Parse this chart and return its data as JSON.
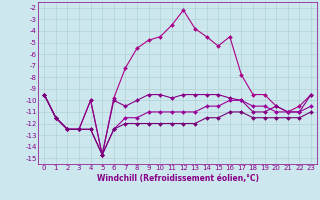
{
  "xlabel": "Windchill (Refroidissement éolien,°C)",
  "background_color": "#cce8ee",
  "grid_color": "#aacccc",
  "line_color": "#880088",
  "xlim": [
    -0.5,
    23.5
  ],
  "ylim": [
    -15.5,
    -1.5
  ],
  "yticks": [
    -15,
    -14,
    -13,
    -12,
    -11,
    -10,
    -9,
    -8,
    -7,
    -6,
    -5,
    -4,
    -3,
    -2
  ],
  "xticks": [
    0,
    1,
    2,
    3,
    4,
    5,
    6,
    7,
    8,
    9,
    10,
    11,
    12,
    13,
    14,
    15,
    16,
    17,
    18,
    19,
    20,
    21,
    22,
    23
  ],
  "series": [
    [
      -9.5,
      -11.5,
      -12.5,
      -12.5,
      -10.0,
      -14.7,
      -9.8,
      -7.2,
      -5.5,
      -4.8,
      -4.5,
      -3.5,
      -2.2,
      -3.8,
      -4.5,
      -5.3,
      -4.5,
      -7.8,
      -9.5,
      -9.5,
      -10.5,
      -11.0,
      -10.5,
      -9.5
    ],
    [
      -9.5,
      -11.5,
      -12.5,
      -12.5,
      -10.0,
      -14.7,
      -10.0,
      -10.5,
      -10.0,
      -9.5,
      -9.5,
      -9.8,
      -9.5,
      -9.5,
      -9.5,
      -9.5,
      -9.8,
      -10.0,
      -11.0,
      -11.0,
      -10.5,
      -11.0,
      -11.0,
      -9.5
    ],
    [
      -9.5,
      -11.5,
      -12.5,
      -12.5,
      -12.5,
      -14.7,
      -12.5,
      -11.5,
      -11.5,
      -11.0,
      -11.0,
      -11.0,
      -11.0,
      -11.0,
      -10.5,
      -10.5,
      -10.0,
      -10.0,
      -10.5,
      -10.5,
      -11.0,
      -11.0,
      -11.0,
      -10.5
    ],
    [
      -9.5,
      -11.5,
      -12.5,
      -12.5,
      -12.5,
      -14.7,
      -12.5,
      -12.0,
      -12.0,
      -12.0,
      -12.0,
      -12.0,
      -12.0,
      -12.0,
      -11.5,
      -11.5,
      -11.0,
      -11.0,
      -11.5,
      -11.5,
      -11.5,
      -11.5,
      -11.5,
      -11.0
    ]
  ],
  "line_colors": [
    "#aa0088",
    "#880088",
    "#990099",
    "#770077"
  ],
  "marker_size": 2.0,
  "linewidth": 0.8,
  "tick_fontsize": 5.0,
  "xlabel_fontsize": 5.5
}
